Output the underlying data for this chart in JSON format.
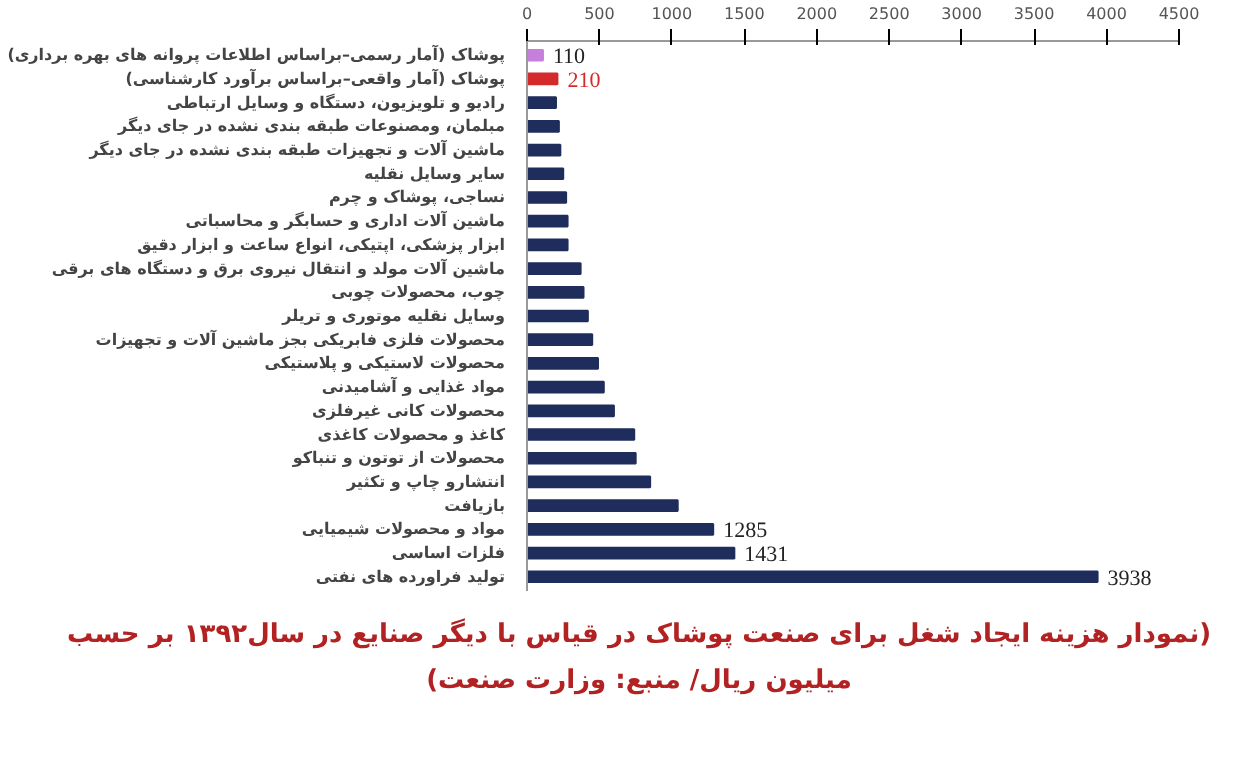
{
  "chart_data": {
    "type": "bar",
    "orientation": "horizontal",
    "title": "(نمودار هزینه ایجاد شغل برای صنعت پوشاک در قیاس با دیگر صنایع در سال۱۳۹۲ بر حسب\nمیلیون ریال/ منبع: وزارت صنعت)",
    "categories": [
      "پوشاک (آمار رسمی–براساس اطلاعات پروانه های بهره برداری)",
      "پوشاک (آمار واقعی–براساس برآورد کارشناسی)",
      "رادیو و تلویزیون، دستگاه و وسایل ارتباطی",
      "مبلمان، ومصنوعات طبقه بندی نشده در جای دیگر",
      "ماشین آلات و تجهیزات طبقه بندی نشده در جای دیگر",
      "سایر وسایل نقلیه",
      "نساجی، پوشاک و چرم",
      "ماشین آلات اداری و حسابگر و محاسباتی",
      "ابزار پزشکی، اپتیکی، انواع ساعت و ابزار دقیق",
      "ماشین آلات مولد و انتقال نیروی برق و دستگاه های برقی",
      "چوب، محصولات چوبی",
      "وسایل نقلیه موتوری و تریلر",
      "محصولات فلزی فابریکی بجز ماشین آلات و تجهیزات",
      "محصولات لاستیکی و پلاستیکی",
      "مواد غذایی و آشامیدنی",
      "محصولات کانی غیرفلزی",
      "کاغذ و محصولات کاغذی",
      "محصولات از توتون و تنباکو",
      "انتشارو چاپ و تکثیر",
      "بازیافت",
      "مواد و محصولات شیمیایی",
      "فلزات اساسی",
      "تولید فراورده های نفتی"
    ],
    "values": [
      110,
      210,
      200,
      220,
      230,
      250,
      270,
      280,
      280,
      370,
      390,
      420,
      450,
      490,
      530,
      600,
      740,
      750,
      850,
      1040,
      1285,
      1431,
      3938
    ],
    "value_labels": [
      "110",
      "210",
      null,
      null,
      null,
      null,
      null,
      null,
      null,
      null,
      null,
      null,
      null,
      null,
      null,
      null,
      null,
      null,
      null,
      null,
      "1285",
      "1431",
      "3938"
    ],
    "colors": [
      "#c77fdc",
      "#d42a2a",
      "#1f2d5c",
      "#1f2d5c",
      "#1f2d5c",
      "#1f2d5c",
      "#1f2d5c",
      "#1f2d5c",
      "#1f2d5c",
      "#1f2d5c",
      "#1f2d5c",
      "#1f2d5c",
      "#1f2d5c",
      "#1f2d5c",
      "#1f2d5c",
      "#1f2d5c",
      "#1f2d5c",
      "#1f2d5c",
      "#1f2d5c",
      "#1f2d5c",
      "#1f2d5c",
      "#1f2d5c",
      "#1f2d5c"
    ],
    "xlim": [
      0,
      4500
    ],
    "xticks": [
      0,
      500,
      1000,
      1500,
      2000,
      2500,
      3000,
      3500,
      4000,
      4500
    ],
    "grid": false
  }
}
